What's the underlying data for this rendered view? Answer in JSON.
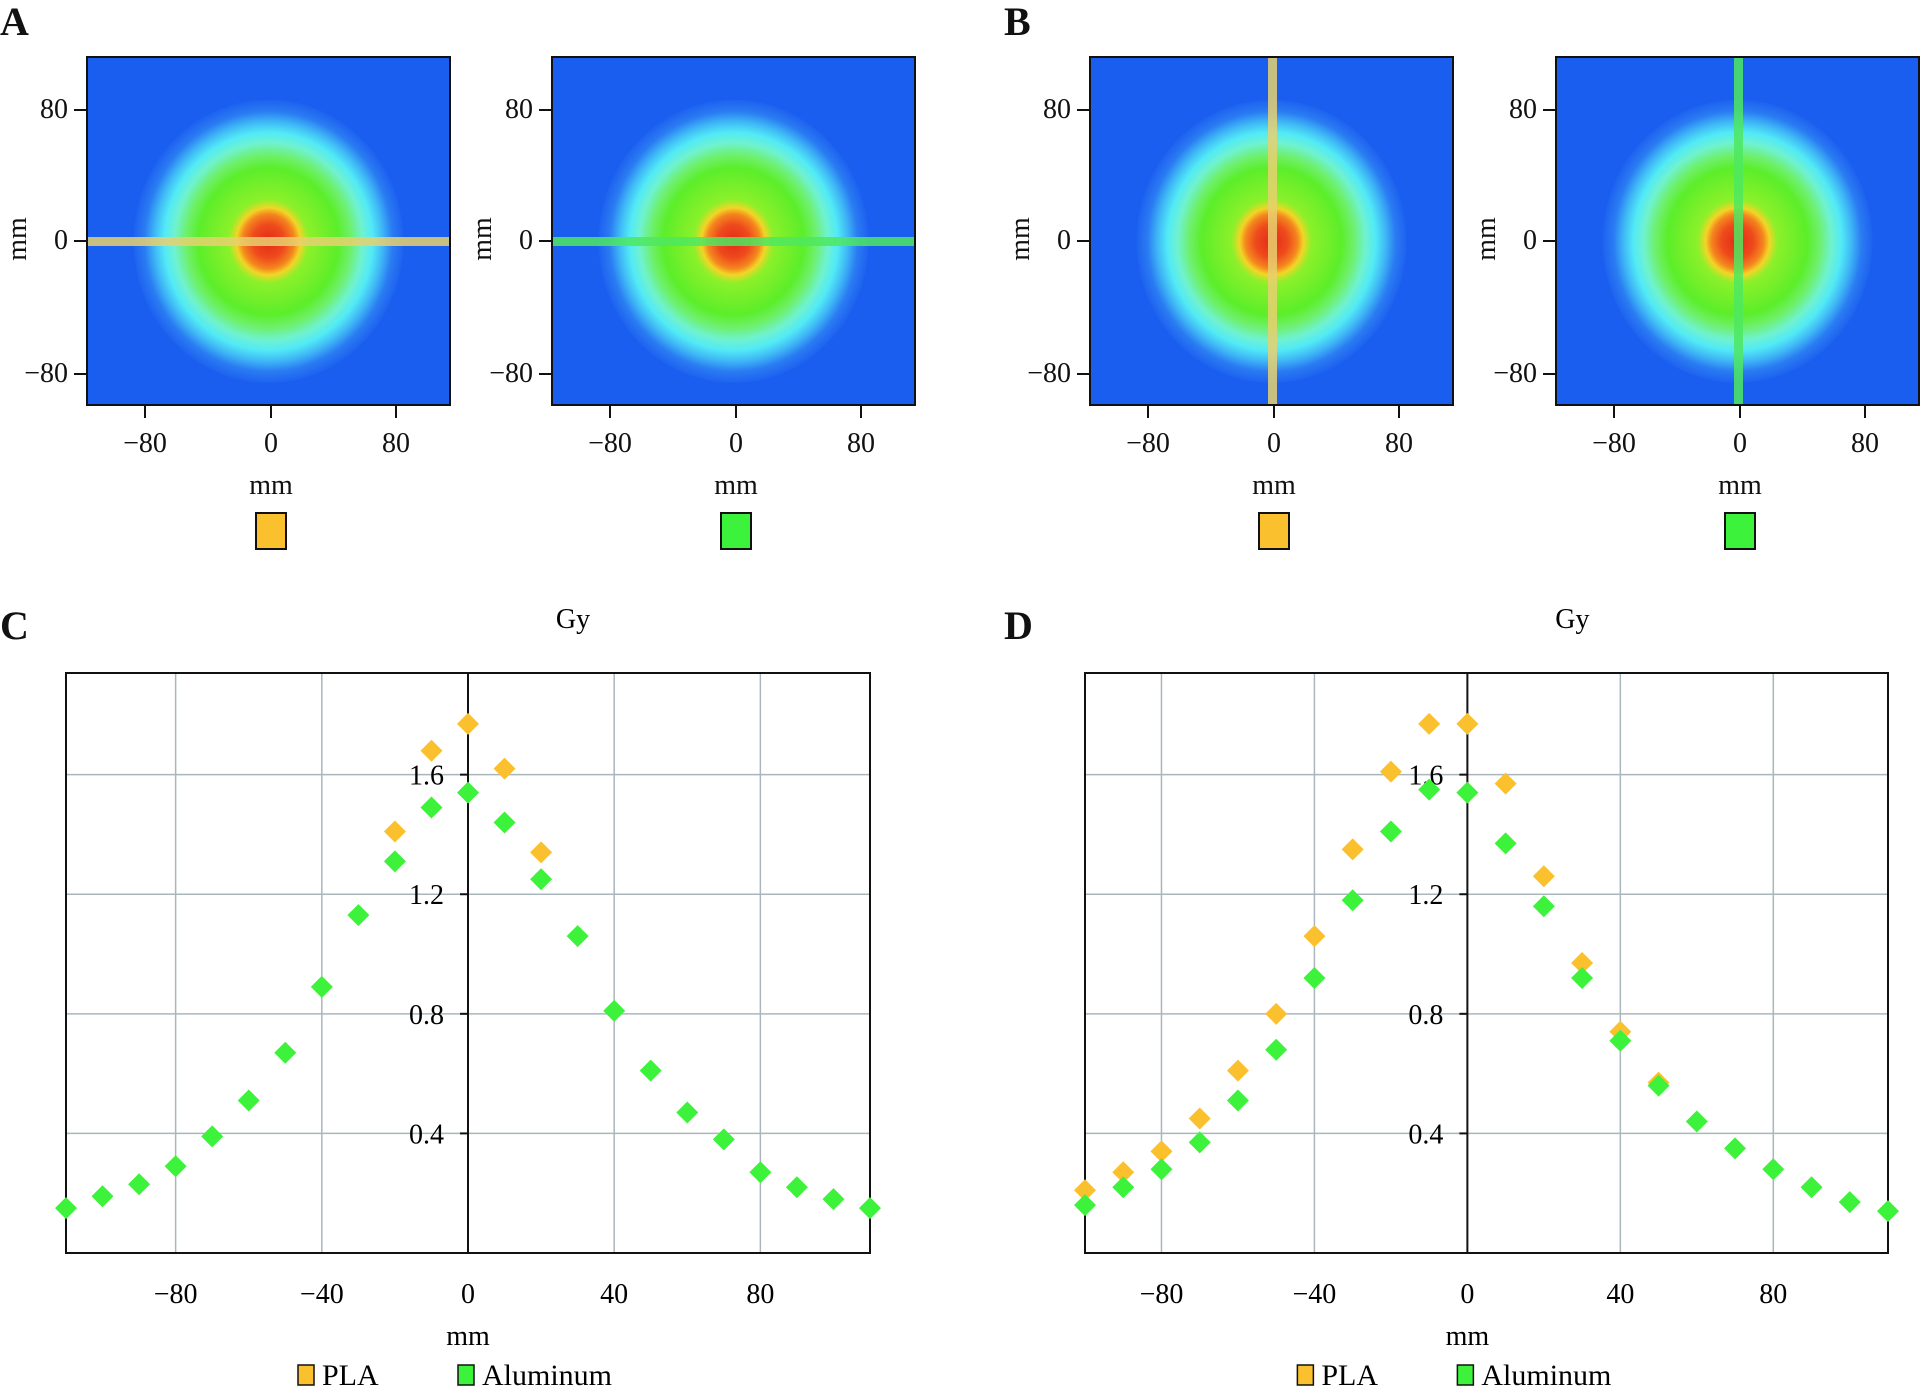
{
  "panels": {
    "A": {
      "letter": "A",
      "line_orientation": "horizontal",
      "maps": [
        {
          "material": "PLA",
          "color": "#fbc02d",
          "line_color": "#e8d070"
        },
        {
          "material": "Aluminum",
          "color": "#3df23a",
          "line_color": "#4ee860"
        }
      ]
    },
    "B": {
      "letter": "B",
      "line_orientation": "vertical",
      "maps": [
        {
          "material": "PLA",
          "color": "#fbc02d",
          "line_color": "#e8d070"
        },
        {
          "material": "Aluminum",
          "color": "#3df23a",
          "line_color": "#4ee860"
        }
      ]
    },
    "heatmap_axis": {
      "xlabel": "mm",
      "ylabel": "mm",
      "xticks": [
        "−80",
        "0",
        "80"
      ],
      "yticks": [
        "80",
        "0",
        "−80"
      ]
    }
  },
  "colorscale": [
    "#1a5ef0",
    "#52eaf6",
    "#5cee2a",
    "#f2d526",
    "#e42a18"
  ],
  "chart_data": [
    {
      "panel": "C",
      "type": "scatter",
      "title": "Gy",
      "xlabel": "mm",
      "ylabel": "",
      "xlim": [
        -110,
        110
      ],
      "ylim": [
        0,
        1.94
      ],
      "xticks": [
        -80,
        -40,
        0,
        40,
        80
      ],
      "xtick_labels": [
        "−80",
        "−40",
        "0",
        "40",
        "80"
      ],
      "yticks": [
        0.4,
        0.8,
        1.2,
        1.6
      ],
      "ytick_labels": [
        "0.4",
        "0.8",
        "1.2",
        "1.6"
      ],
      "grid": true,
      "legend": "bottom",
      "series": [
        {
          "name": "PLA",
          "color": "#fbc02d",
          "x": [
            -20,
            -10,
            0,
            10,
            20
          ],
          "y": [
            1.41,
            1.68,
            1.77,
            1.62,
            1.34
          ]
        },
        {
          "name": "Aluminum",
          "color": "#3df23a",
          "x": [
            -110,
            -100,
            -90,
            -80,
            -70,
            -60,
            -50,
            -40,
            -30,
            -20,
            -10,
            0,
            10,
            20,
            30,
            40,
            50,
            60,
            70,
            80,
            90,
            100,
            110
          ],
          "y": [
            0.15,
            0.19,
            0.23,
            0.29,
            0.39,
            0.51,
            0.67,
            0.89,
            1.13,
            1.31,
            1.49,
            1.54,
            1.44,
            1.25,
            1.06,
            0.81,
            0.61,
            0.47,
            0.38,
            0.27,
            0.22,
            0.18,
            0.15
          ]
        }
      ]
    },
    {
      "panel": "D",
      "type": "scatter",
      "title": "Gy",
      "xlabel": "mm",
      "ylabel": "",
      "xlim": [
        -100,
        110
      ],
      "ylim": [
        0,
        1.94
      ],
      "xticks": [
        -80,
        -40,
        0,
        40,
        80
      ],
      "xtick_labels": [
        "−80",
        "−40",
        "0",
        "40",
        "80"
      ],
      "yticks": [
        0.4,
        0.8,
        1.2,
        1.6
      ],
      "ytick_labels": [
        "0.4",
        "0.8",
        "1.2",
        "1.6"
      ],
      "grid": true,
      "legend": "bottom",
      "series": [
        {
          "name": "PLA",
          "color": "#fbc02d",
          "x": [
            -100,
            -90,
            -80,
            -70,
            -60,
            -50,
            -40,
            -30,
            -20,
            -10,
            0,
            10,
            20,
            30,
            40,
            50
          ],
          "y": [
            0.21,
            0.27,
            0.34,
            0.45,
            0.61,
            0.8,
            1.06,
            1.35,
            1.61,
            1.77,
            1.77,
            1.57,
            1.26,
            0.97,
            0.74,
            0.57
          ]
        },
        {
          "name": "Aluminum",
          "color": "#3df23a",
          "x": [
            -100,
            -90,
            -80,
            -70,
            -60,
            -50,
            -40,
            -30,
            -20,
            -10,
            0,
            10,
            20,
            30,
            40,
            50,
            60,
            70,
            80,
            90,
            100,
            110
          ],
          "y": [
            0.16,
            0.22,
            0.28,
            0.37,
            0.51,
            0.68,
            0.92,
            1.18,
            1.41,
            1.55,
            1.54,
            1.37,
            1.16,
            0.92,
            0.71,
            0.56,
            0.44,
            0.35,
            0.28,
            0.22,
            0.17,
            0.14
          ]
        }
      ]
    }
  ]
}
